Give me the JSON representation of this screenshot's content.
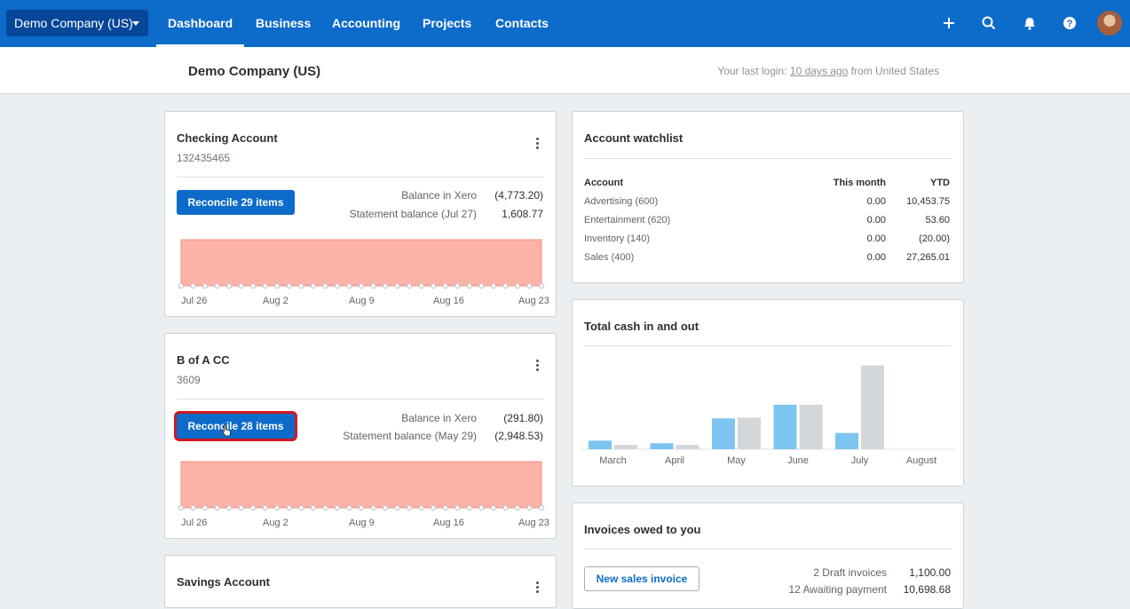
{
  "topnav": {
    "org_name": "Demo Company (US)",
    "items": [
      {
        "label": "Dashboard",
        "active": true
      },
      {
        "label": "Business"
      },
      {
        "label": "Accounting"
      },
      {
        "label": "Projects"
      },
      {
        "label": "Contacts"
      }
    ],
    "icons": [
      "plus-icon",
      "search-icon",
      "bell-icon",
      "help-icon",
      "avatar"
    ]
  },
  "subheader": {
    "title": "Demo Company (US)",
    "login_prefix": "Your last login: ",
    "login_link": "10 days ago",
    "login_suffix": " from United States"
  },
  "checking": {
    "title": "Checking Account",
    "number": "132435465",
    "button": "Reconcile 29 items",
    "balance_label": "Balance in Xero",
    "balance_value": "(4,773.20)",
    "statement_label": "Statement balance (Jul 27)",
    "statement_value": "1,608.77",
    "x_labels": [
      "Jul 26",
      "Aug 2",
      "Aug 9",
      "Aug 16",
      "Aug 23"
    ]
  },
  "bofa": {
    "title": "B of A CC",
    "number": "3609",
    "button": "Reconcile 28 items",
    "balance_label": "Balance in Xero",
    "balance_value": "(291.80)",
    "statement_label": "Statement balance (May 29)",
    "statement_value": "(2,948.53)",
    "x_labels": [
      "Jul 26",
      "Aug 2",
      "Aug 9",
      "Aug 16",
      "Aug 23"
    ]
  },
  "savings": {
    "title": "Savings Account"
  },
  "watchlist": {
    "title": "Account watchlist",
    "headers": [
      "Account",
      "This month",
      "YTD"
    ],
    "rows": [
      [
        "Advertising (600)",
        "0.00",
        "10,453.75"
      ],
      [
        "Entertainment (620)",
        "0.00",
        "53.60"
      ],
      [
        "Inventory (140)",
        "0.00",
        "(20.00)"
      ],
      [
        "Sales (400)",
        "0.00",
        "27,265.01"
      ]
    ]
  },
  "cash": {
    "title": "Total cash in and out"
  },
  "invoices": {
    "title": "Invoices owed to you",
    "button": "New sales invoice",
    "rows": [
      {
        "label": "2 Draft invoices",
        "value": "1,100.00"
      },
      {
        "label": "12 Awaiting payment",
        "value": "10,698.68"
      }
    ]
  },
  "chart_data": [
    {
      "type": "area",
      "x": [
        "Jul 26",
        "Aug 2",
        "Aug 9",
        "Aug 16",
        "Aug 23"
      ],
      "series": [
        {
          "values": [
            1,
            1,
            1,
            1,
            1
          ]
        }
      ],
      "color": "#fdb3a8"
    },
    {
      "type": "area",
      "x": [
        "Jul 26",
        "Aug 2",
        "Aug 9",
        "Aug 16",
        "Aug 23"
      ],
      "series": [
        {
          "values": [
            1,
            1,
            1,
            1,
            1
          ]
        }
      ],
      "color": "#fdb3a8"
    },
    {
      "type": "bar",
      "categories": [
        "March",
        "April",
        "May",
        "June",
        "July",
        "August"
      ],
      "series": [
        {
          "values": [
            10,
            7,
            36,
            52,
            19,
            0
          ],
          "color": "#7dc4f0"
        },
        {
          "values": [
            5,
            5,
            37,
            52,
            98,
            0
          ],
          "color": "#d3d7da"
        }
      ],
      "ylim": [
        0,
        110
      ]
    }
  ]
}
